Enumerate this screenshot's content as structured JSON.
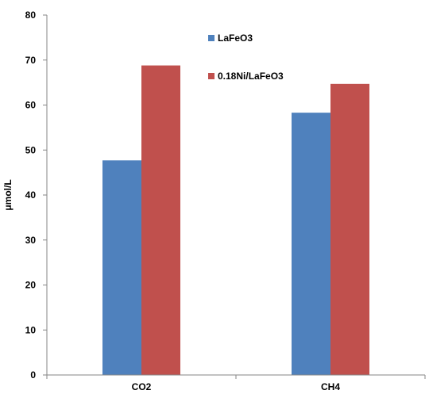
{
  "chart_data": {
    "type": "bar",
    "title": "",
    "xlabel": "",
    "ylabel": "μmol/L",
    "categories": [
      "CO2",
      "CH4"
    ],
    "series": [
      {
        "name": "LaFeO3",
        "color": "#4f81bd",
        "values": [
          47.7,
          58.3
        ]
      },
      {
        "name": "0.18Ni/LaFeO3",
        "color": "#c0504d",
        "values": [
          68.8,
          64.7
        ]
      }
    ],
    "ylim": [
      0,
      80
    ],
    "yticks": [
      0,
      10,
      20,
      30,
      40,
      50,
      60,
      70,
      80
    ],
    "grid": false,
    "legend_position": "top-center"
  }
}
